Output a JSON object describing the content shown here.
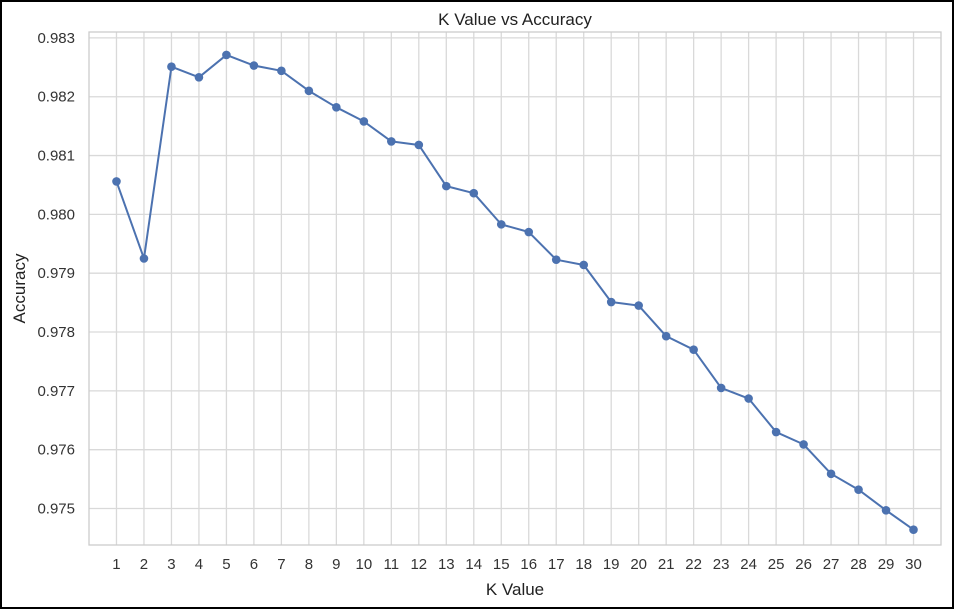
{
  "chart_data": {
    "type": "line",
    "title": "K Value vs Accuracy",
    "xlabel": "K Value",
    "ylabel": "Accuracy",
    "x": [
      1,
      2,
      3,
      4,
      5,
      6,
      7,
      8,
      9,
      10,
      11,
      12,
      13,
      14,
      15,
      16,
      17,
      18,
      19,
      20,
      21,
      22,
      23,
      24,
      25,
      26,
      27,
      28,
      29,
      30
    ],
    "y": [
      0.98056,
      0.97925,
      0.98251,
      0.98233,
      0.98271,
      0.98253,
      0.98244,
      0.9821,
      0.98182,
      0.98158,
      0.98124,
      0.98118,
      0.98048,
      0.98036,
      0.97983,
      0.9797,
      0.97923,
      0.97914,
      0.97851,
      0.97845,
      0.97793,
      0.9777,
      0.97705,
      0.97687,
      0.9763,
      0.97609,
      0.97559,
      0.97532,
      0.97497,
      0.97464
    ],
    "xticks": [
      "1",
      "2",
      "3",
      "4",
      "5",
      "6",
      "7",
      "8",
      "9",
      "10",
      "11",
      "12",
      "13",
      "14",
      "15",
      "16",
      "17",
      "18",
      "19",
      "20",
      "21",
      "22",
      "23",
      "24",
      "25",
      "26",
      "27",
      "28",
      "29",
      "30"
    ],
    "yticks": [
      "0.975",
      "0.976",
      "0.977",
      "0.978",
      "0.979",
      "0.980",
      "0.981",
      "0.982",
      "0.983"
    ],
    "ytick_values": [
      0.975,
      0.976,
      0.977,
      0.978,
      0.979,
      0.98,
      0.981,
      0.982,
      0.983
    ],
    "xlim": [
      0,
      31
    ],
    "ylim": [
      0.97438,
      0.9831
    ],
    "grid": true,
    "line_color": "#4c72b0",
    "marker": "circle",
    "grid_color": "#d9d9d9",
    "frame_color": "#cccccc"
  }
}
